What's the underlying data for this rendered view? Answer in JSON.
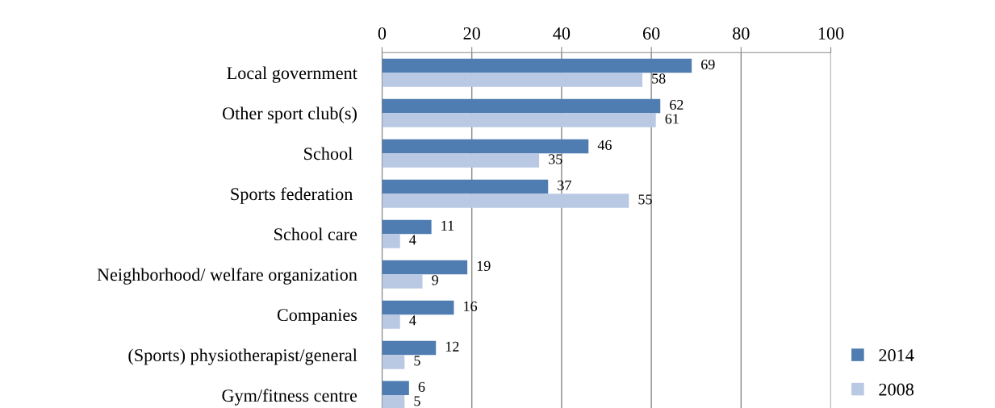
{
  "chart_data": {
    "type": "bar",
    "orientation": "horizontal",
    "categories": [
      "Local government",
      "Other sport club(s)",
      "School ",
      "Sports federation ",
      "School care",
      "Neighborhood/ welfare organization",
      "Companies",
      "(Sports) physiotherapist/general",
      "Gym/fitness centre"
    ],
    "series": [
      {
        "name": "2014",
        "color": "#4f7db1",
        "values": [
          69,
          62,
          46,
          37,
          11,
          19,
          16,
          12,
          6
        ]
      },
      {
        "name": "2008",
        "color": "#b9c8e3",
        "values": [
          58,
          61,
          35,
          55,
          4,
          9,
          4,
          5,
          5
        ]
      }
    ],
    "xlim": [
      0,
      100
    ],
    "xticks": [
      0,
      20,
      40,
      60,
      80,
      100
    ],
    "grid": "x",
    "legend": "bottom right",
    "data_labels": true
  }
}
